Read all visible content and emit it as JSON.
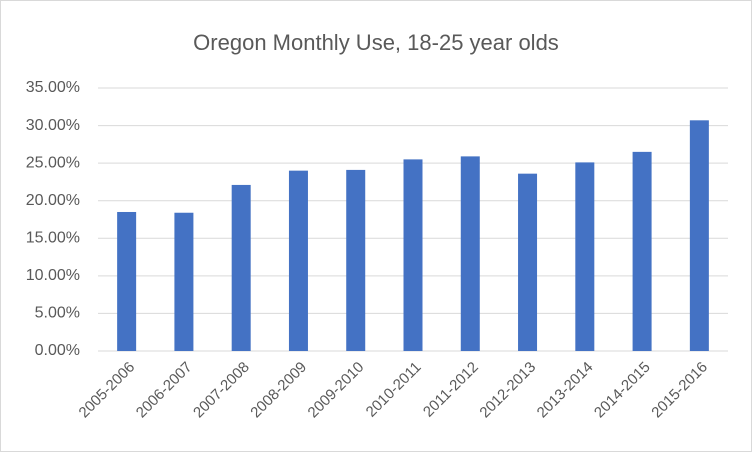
{
  "chart_data": {
    "type": "bar",
    "title": "Oregon Monthly Use, 18-25 year olds",
    "categories": [
      "2005-2006",
      "2006-2007",
      "2007-2008",
      "2008-2009",
      "2009-2010",
      "2010-2011",
      "2011-2012",
      "2012-2013",
      "2013-2014",
      "2014-2015",
      "2015-2016"
    ],
    "values": [
      18.5,
      18.4,
      22.1,
      24.0,
      24.1,
      25.5,
      25.9,
      23.6,
      25.1,
      26.5,
      30.7
    ],
    "color": "#4472c4",
    "ylim": [
      0,
      35
    ],
    "yticks": [
      {
        "value": 0,
        "label": "0.00%"
      },
      {
        "value": 5,
        "label": "5.00%"
      },
      {
        "value": 10,
        "label": "10.00%"
      },
      {
        "value": 15,
        "label": "15.00%"
      },
      {
        "value": 20,
        "label": "20.00%"
      },
      {
        "value": 25,
        "label": "25.00%"
      },
      {
        "value": 30,
        "label": "30.00%"
      },
      {
        "value": 35,
        "label": "35.00%"
      }
    ],
    "grid": true
  }
}
